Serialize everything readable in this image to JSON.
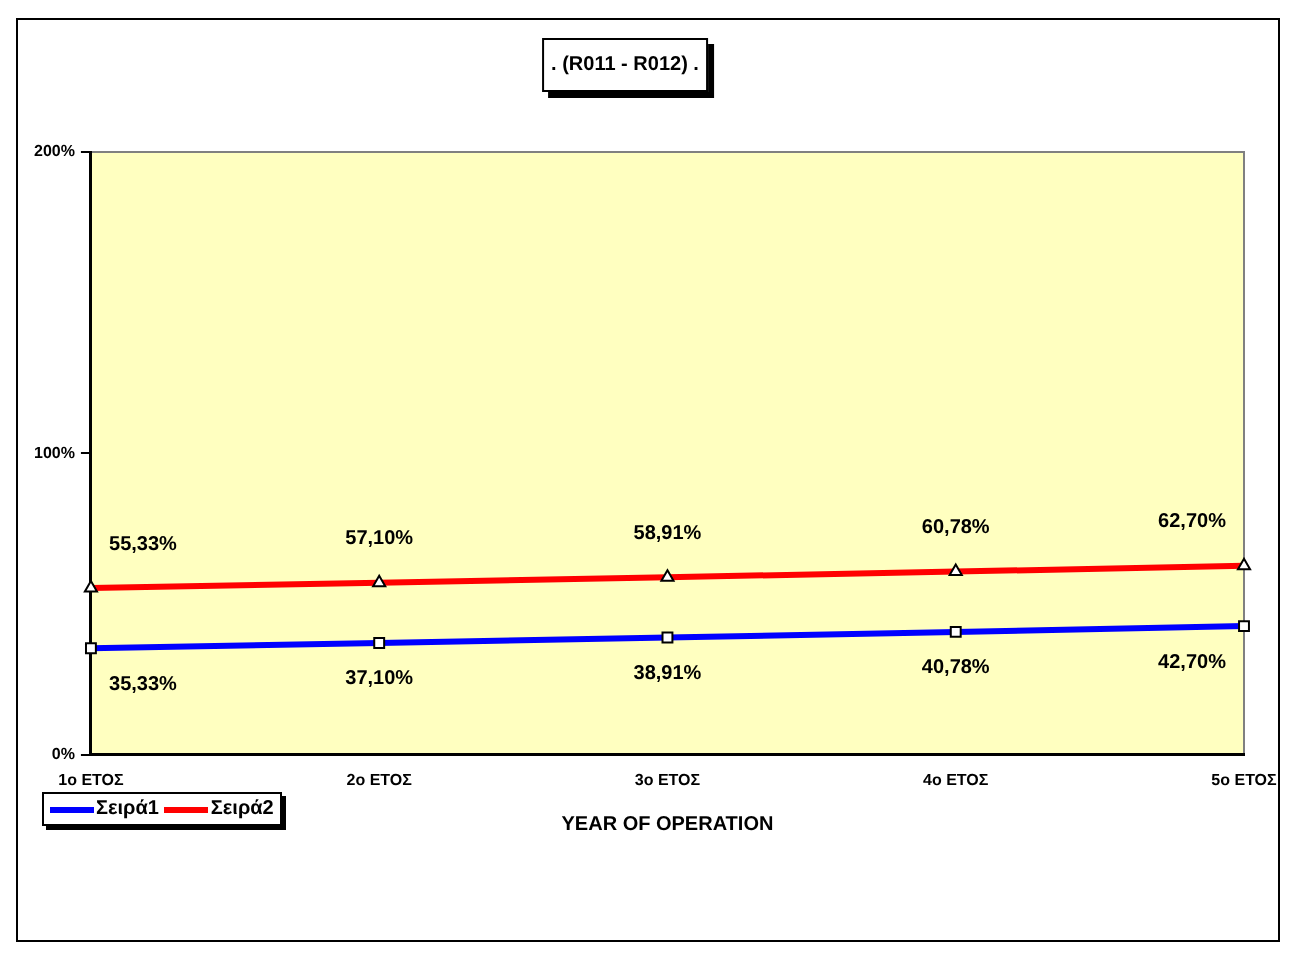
{
  "chart_data": {
    "type": "line",
    "title": ". (R011 - R012) .",
    "xlabel": "YEAR OF OPERATION",
    "categories": [
      "1ο ΕΤΟΣ",
      "2ο ΕΤΟΣ",
      "3ο ΕΤΟΣ",
      "4ο ΕΤΟΣ",
      "5ο ΕΤΟΣ"
    ],
    "series": [
      {
        "name": "Σειρά1",
        "color": "#0000ff",
        "marker": "square",
        "values": [
          35.33,
          37.1,
          38.91,
          40.78,
          42.7
        ],
        "value_labels": [
          "35,33%",
          "37,10%",
          "38,91%",
          "40,78%",
          "42,70%"
        ]
      },
      {
        "name": "Σειρά2",
        "color": "#ff0000",
        "marker": "triangle",
        "values": [
          55.33,
          57.1,
          58.91,
          60.78,
          62.7
        ],
        "value_labels": [
          "55,33%",
          "57,10%",
          "58,91%",
          "60,78%",
          "62,70%"
        ]
      }
    ],
    "ylim": [
      0,
      200
    ],
    "yticks": [
      {
        "value": 0,
        "label": "0%"
      },
      {
        "value": 100,
        "label": "100%"
      },
      {
        "value": 200,
        "label": "200%"
      }
    ],
    "grid": false,
    "legend": "bottom left",
    "line_style": "solid"
  }
}
